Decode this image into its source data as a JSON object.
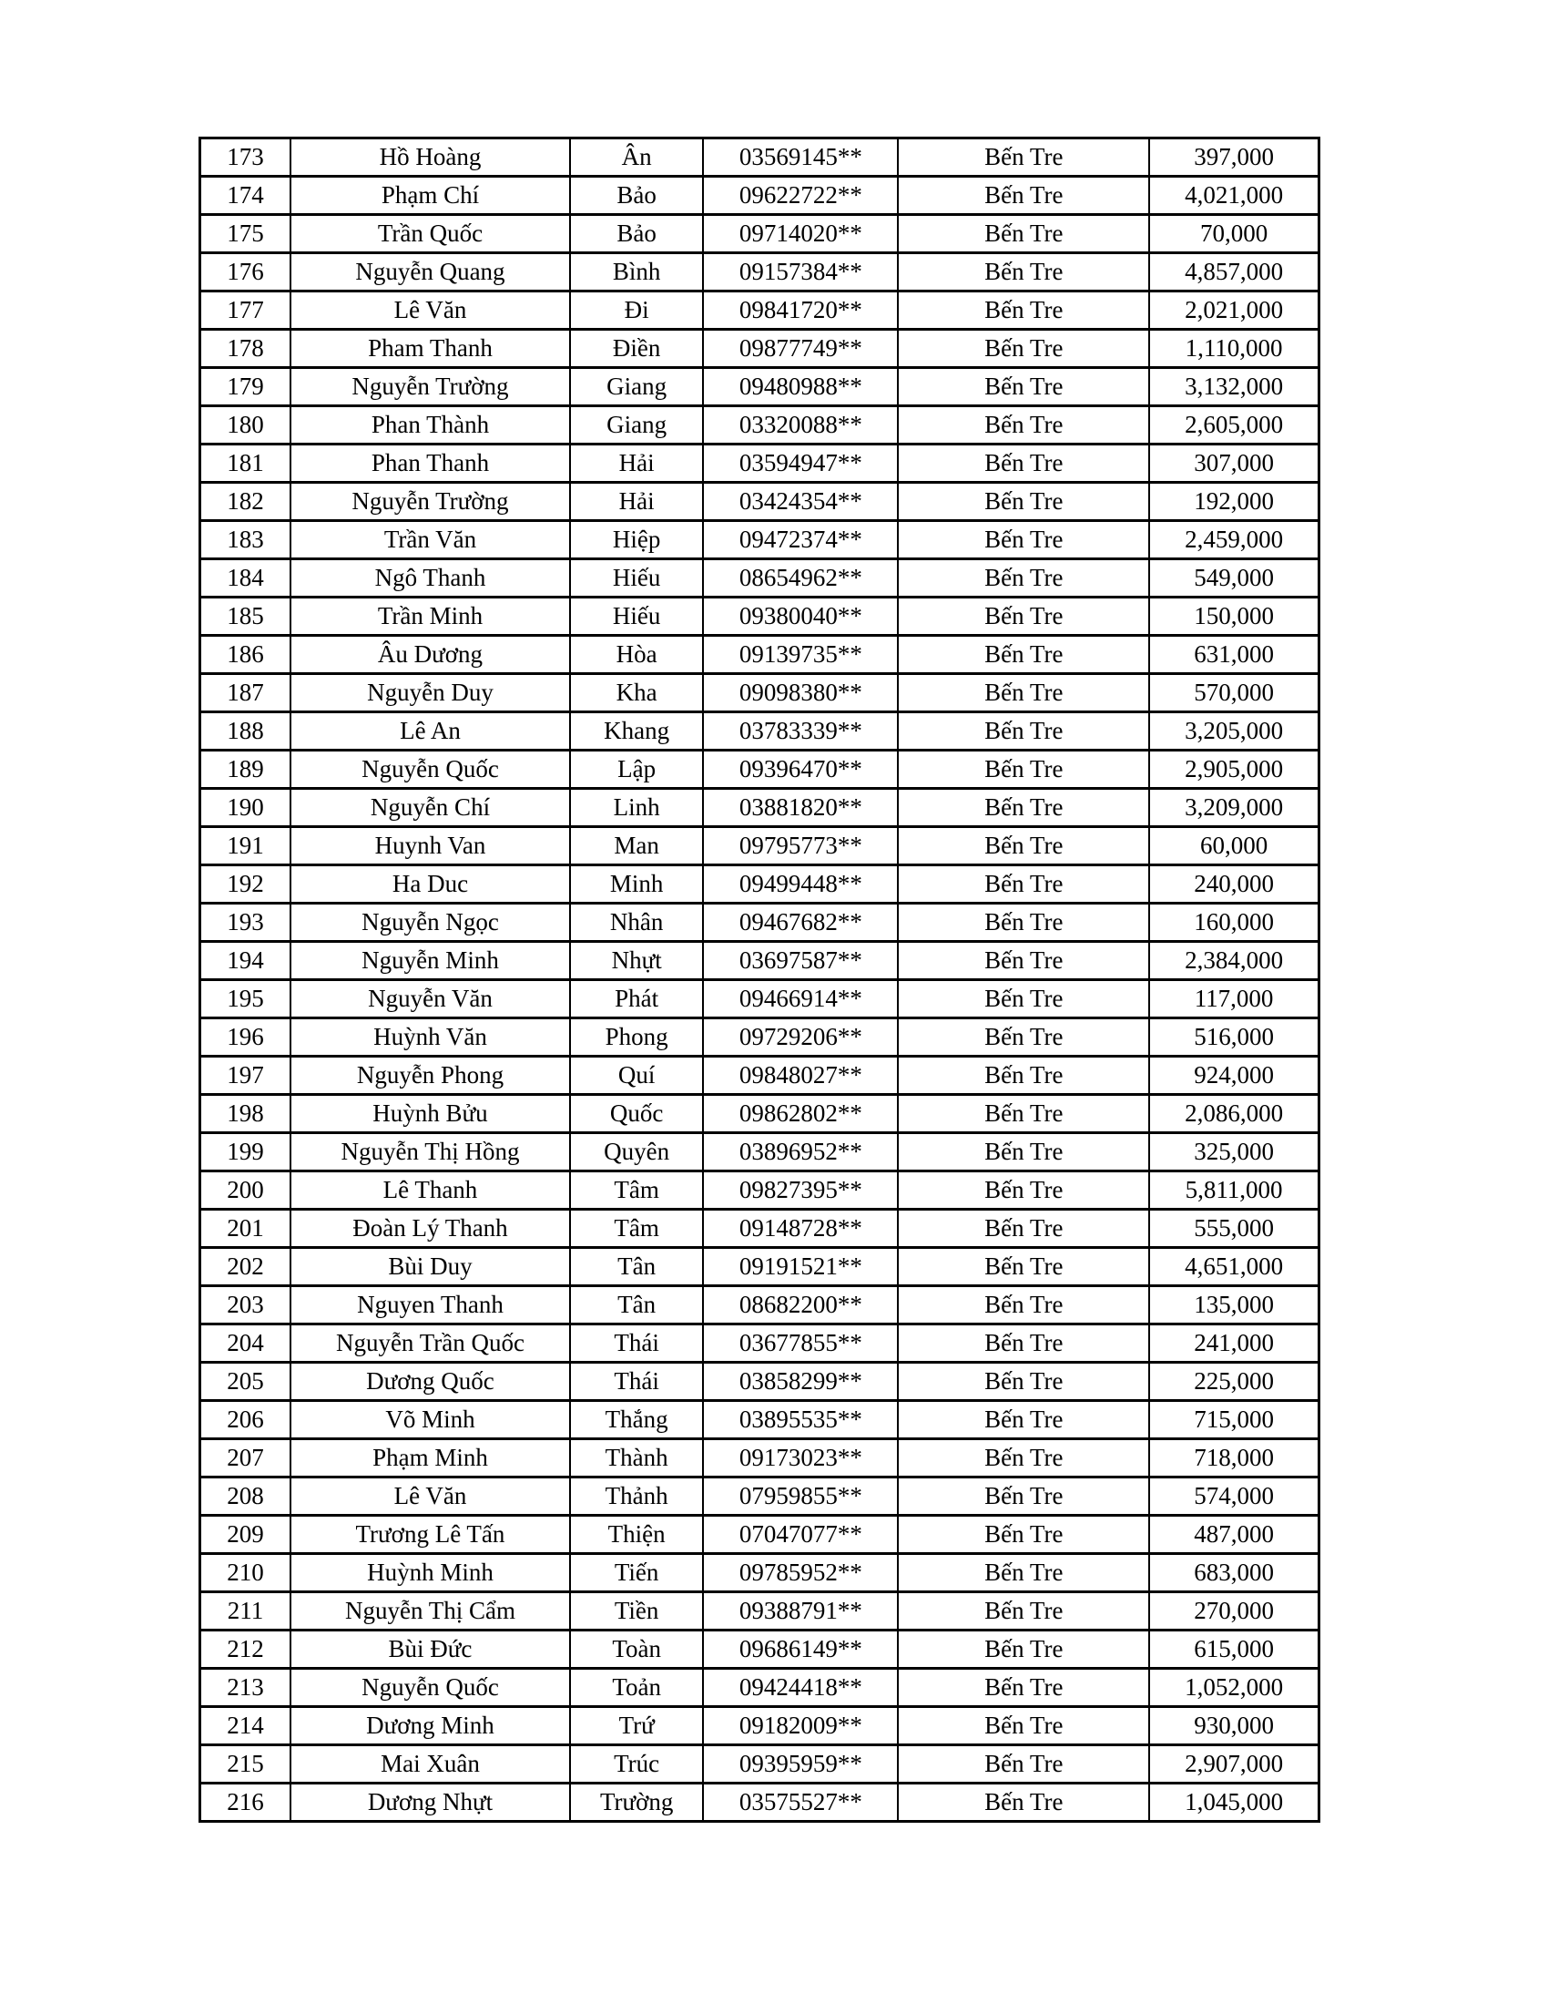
{
  "table": {
    "columns": [
      "stt",
      "ho_lot",
      "ten",
      "phone",
      "province",
      "amount"
    ],
    "rows": [
      [
        "173",
        "Hồ  Hoàng",
        "Ân",
        "03569145**",
        "Bến Tre",
        "397,000"
      ],
      [
        "174",
        "Phạm  Chí",
        "Bảo",
        "09622722**",
        "Bến Tre",
        "4,021,000"
      ],
      [
        "175",
        "Trần Quốc",
        "Bảo",
        "09714020**",
        "Bến Tre",
        "70,000"
      ],
      [
        "176",
        "Nguyễn Quang",
        "Bình",
        "09157384**",
        "Bến Tre",
        "4,857,000"
      ],
      [
        "177",
        "Lê Văn",
        "Đi",
        "09841720**",
        "Bến Tre",
        "2,021,000"
      ],
      [
        "178",
        "Pham Thanh",
        "Điền",
        "09877749**",
        "Bến Tre",
        "1,110,000"
      ],
      [
        "179",
        "Nguyễn Trường",
        "Giang",
        "09480988**",
        "Bến Tre",
        "3,132,000"
      ],
      [
        "180",
        "Phan Thành",
        "Giang",
        "03320088**",
        "Bến Tre",
        "2,605,000"
      ],
      [
        "181",
        "Phan Thanh",
        "Hải",
        "03594947**",
        "Bến Tre",
        "307,000"
      ],
      [
        "182",
        "Nguyễn Trường",
        "Hải",
        "03424354**",
        "Bến Tre",
        "192,000"
      ],
      [
        "183",
        "Trần Văn",
        "Hiệp",
        "09472374**",
        "Bến Tre",
        "2,459,000"
      ],
      [
        "184",
        "Ngô Thanh",
        "Hiếu",
        "08654962**",
        "Bến Tre",
        "549,000"
      ],
      [
        "185",
        "Trần Minh",
        "Hiếu",
        "09380040**",
        "Bến Tre",
        "150,000"
      ],
      [
        "186",
        "Âu Dương",
        "Hòa",
        "09139735**",
        "Bến Tre",
        "631,000"
      ],
      [
        "187",
        "Nguyễn Duy",
        "Kha",
        "09098380**",
        "Bến Tre",
        "570,000"
      ],
      [
        "188",
        "Lê An",
        "Khang",
        "03783339**",
        "Bến Tre",
        "3,205,000"
      ],
      [
        "189",
        "Nguyễn Quốc",
        "Lập",
        "09396470**",
        "Bến Tre",
        "2,905,000"
      ],
      [
        "190",
        "Nguyễn Chí",
        "Linh",
        "03881820**",
        "Bến Tre",
        "3,209,000"
      ],
      [
        "191",
        "Huynh Van",
        "Man",
        "09795773**",
        "Bến Tre",
        "60,000"
      ],
      [
        "192",
        "Ha Duc",
        "Minh",
        "09499448**",
        "Bến Tre",
        "240,000"
      ],
      [
        "193",
        "Nguyễn Ngọc",
        "Nhân",
        "09467682**",
        "Bến Tre",
        "160,000"
      ],
      [
        "194",
        "Nguyễn Minh",
        "Nhựt",
        "03697587**",
        "Bến Tre",
        "2,384,000"
      ],
      [
        "195",
        "Nguyễn Văn",
        "Phát",
        "09466914**",
        "Bến Tre",
        "117,000"
      ],
      [
        "196",
        "Huỳnh Văn",
        "Phong",
        "09729206**",
        "Bến Tre",
        "516,000"
      ],
      [
        "197",
        "Nguyễn Phong",
        "Quí",
        "09848027**",
        "Bến Tre",
        "924,000"
      ],
      [
        "198",
        "Huỳnh Bửu",
        "Quốc",
        "09862802**",
        "Bến Tre",
        "2,086,000"
      ],
      [
        "199",
        "Nguyễn Thị Hồng",
        "Quyên",
        "03896952**",
        "Bến Tre",
        "325,000"
      ],
      [
        "200",
        "Lê Thanh",
        "Tâm",
        "09827395**",
        "Bến Tre",
        "5,811,000"
      ],
      [
        "201",
        "Đoàn Lý Thanh",
        "Tâm",
        "09148728**",
        "Bến Tre",
        "555,000"
      ],
      [
        "202",
        "Bùi Duy",
        "Tân",
        "09191521**",
        "Bến Tre",
        "4,651,000"
      ],
      [
        "203",
        "Nguyen Thanh",
        "Tân",
        "08682200**",
        "Bến Tre",
        "135,000"
      ],
      [
        "204",
        "Nguyễn Trần Quốc",
        "Thái",
        "03677855**",
        "Bến Tre",
        "241,000"
      ],
      [
        "205",
        "Dương Quốc",
        "Thái",
        "03858299**",
        "Bến Tre",
        "225,000"
      ],
      [
        "206",
        "Võ Minh",
        "Thắng",
        "03895535**",
        "Bến Tre",
        "715,000"
      ],
      [
        "207",
        "Phạm Minh",
        "Thành",
        "09173023**",
        "Bến Tre",
        "718,000"
      ],
      [
        "208",
        "Lê Văn",
        "Thảnh",
        "07959855**",
        "Bến Tre",
        "574,000"
      ],
      [
        "209",
        "Trương Lê Tấn",
        "Thiện",
        "07047077**",
        "Bến Tre",
        "487,000"
      ],
      [
        "210",
        "Huỳnh Minh",
        "Tiến",
        "09785952**",
        "Bến Tre",
        "683,000"
      ],
      [
        "211",
        "Nguyễn Thị Cẩm",
        "Tiền",
        "09388791**",
        "Bến Tre",
        "270,000"
      ],
      [
        "212",
        "Bùi Đức",
        "Toàn",
        "09686149**",
        "Bến Tre",
        "615,000"
      ],
      [
        "213",
        "Nguyễn Quốc",
        "Toản",
        "09424418**",
        "Bến Tre",
        "1,052,000"
      ],
      [
        "214",
        "Dương Minh",
        "Trứ",
        "09182009**",
        "Bến Tre",
        "930,000"
      ],
      [
        "215",
        "Mai Xuân",
        "Trúc",
        "09395959**",
        "Bến Tre",
        "2,907,000"
      ],
      [
        "216",
        "Dương Nhựt",
        "Trường",
        "03575527**",
        "Bến Tre",
        "1,045,000"
      ]
    ]
  }
}
